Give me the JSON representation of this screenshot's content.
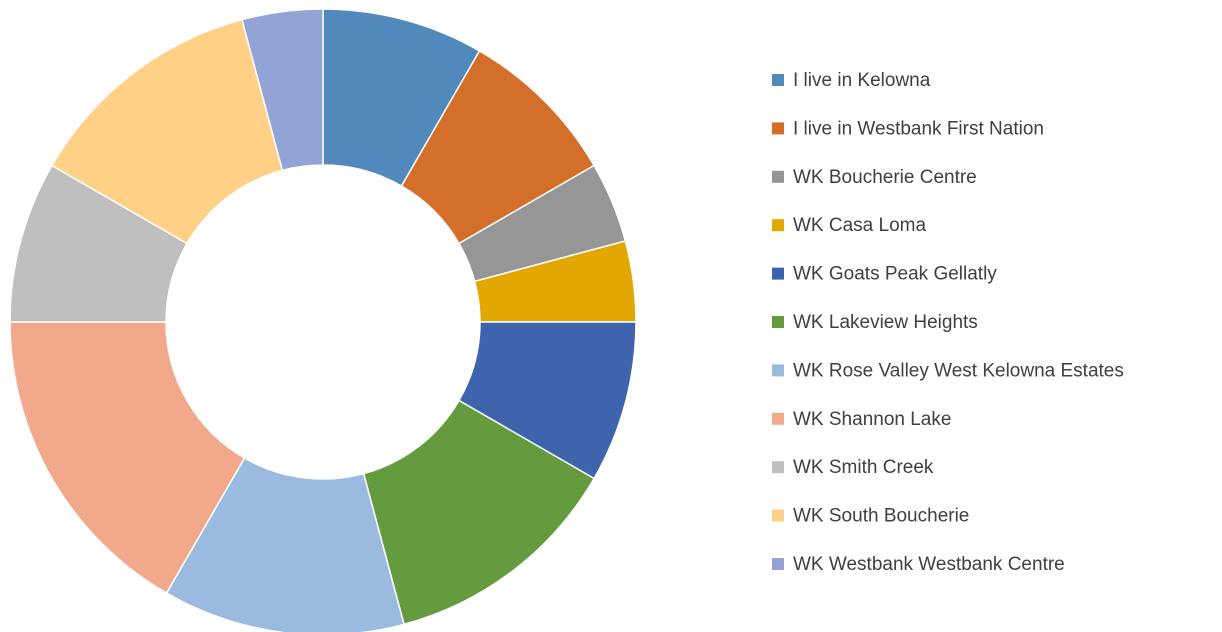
{
  "chart_data": {
    "type": "donut",
    "categories": [
      "I live in Kelowna",
      "I live in Westbank First Nation",
      "WK Boucherie Centre",
      "WK Casa Loma",
      "WK Goats Peak Gellatly",
      "WK Lakeview Heights",
      "WK Rose Valley West Kelowna Estates",
      "WK Shannon Lake",
      "WK Smith Creek",
      "WK South Boucherie",
      "WK Westbank Westbank Centre"
    ],
    "values": [
      2,
      2,
      1,
      1,
      2,
      3,
      3,
      4,
      2,
      3,
      1
    ],
    "colors": [
      "#5189bd",
      "#d46f2a",
      "#969696",
      "#e2a700",
      "#3d64ad",
      "#659b3f",
      "#9bbae0",
      "#f2a98b",
      "#bfbfbf",
      "#ffd085",
      "#92a3d6"
    ],
    "legend": "right"
  }
}
